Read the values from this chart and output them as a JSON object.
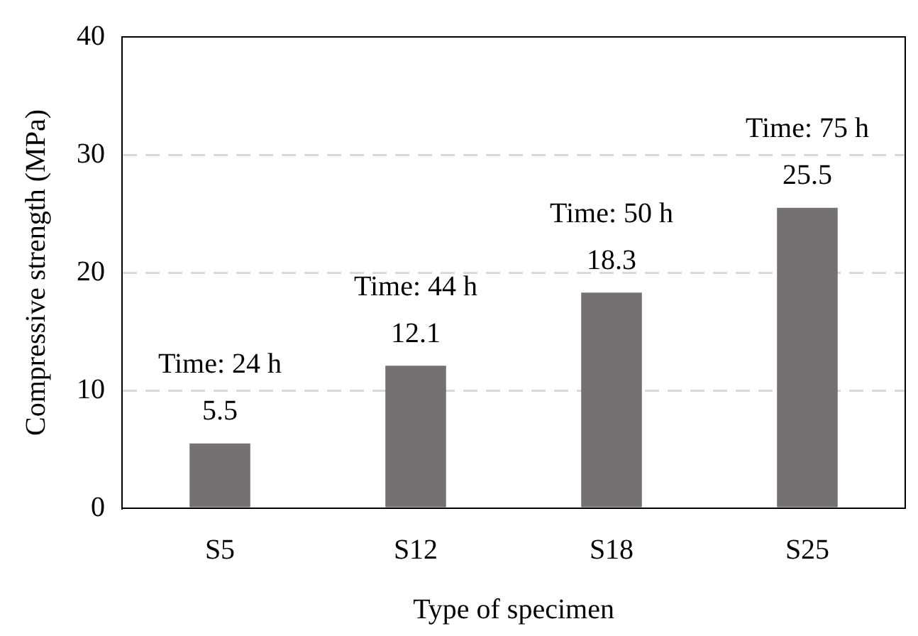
{
  "chart_data": {
    "type": "bar",
    "xlabel": "Type of specimen",
    "ylabel": "Compressive strength (MPa)",
    "categories": [
      "S5",
      "S12",
      "S18",
      "S25"
    ],
    "values": [
      5.5,
      12.1,
      18.3,
      25.5
    ],
    "color": "#767171",
    "ylim": [
      0,
      40
    ],
    "yticks": [
      0,
      10,
      20,
      30,
      40
    ],
    "grid": "y",
    "data_labels": true,
    "annotations": [
      {
        "text": "Time: 24 h",
        "x": "S5",
        "y": 5.5
      },
      {
        "text": "Time: 44 h",
        "x": "S12",
        "y": 12.1
      },
      {
        "text": "Time: 50 h",
        "x": "S18",
        "y": 18.3
      },
      {
        "text": "Time: 75 h",
        "x": "S25",
        "y": 25.5
      }
    ]
  }
}
